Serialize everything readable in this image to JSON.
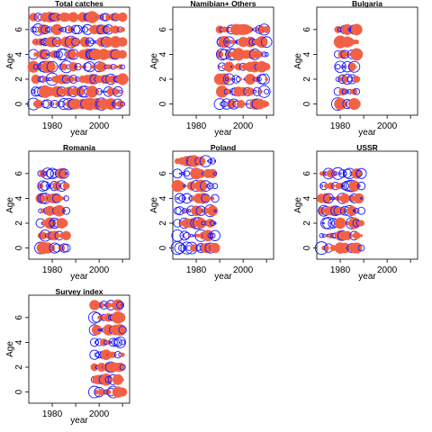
{
  "colors": {
    "positive": "#f26145",
    "negative": "#1a1aff",
    "axes": "#000000",
    "background": "#ffffff"
  },
  "chart_data": {
    "type": "scatter",
    "variant": "bubble residual plot (filled = positive, open circle = negative)",
    "xlabel": "year",
    "ylabel": "Age",
    "xlim": [
      1970,
      2013
    ],
    "ylim": [
      -0.9,
      7.8
    ],
    "xticks": [
      1980,
      2000
    ],
    "yticks": [
      0,
      2,
      4,
      6
    ],
    "panels": [
      {
        "title": "Total catches",
        "x_range": [
          1972,
          2010
        ],
        "ages": [
          0,
          7
        ],
        "seed": 11
      },
      {
        "title": "Namibian+ Others",
        "x_range": [
          1990,
          2010
        ],
        "ages": [
          0,
          6
        ],
        "seed": 23
      },
      {
        "title": "Bulgaria",
        "x_range": [
          1979,
          1987
        ],
        "ages": [
          0,
          6
        ],
        "seed": 37
      },
      {
        "title": "Romania",
        "x_range": [
          1975,
          1986
        ],
        "ages": [
          0,
          6
        ],
        "seed": 41
      },
      {
        "title": "Poland",
        "x_range": [
          1972,
          1988
        ],
        "ages": [
          0,
          7
        ],
        "seed": 53
      },
      {
        "title": "USSR",
        "x_range": [
          1972,
          1989
        ],
        "ages": [
          0,
          6
        ],
        "seed": 67
      },
      {
        "title": "Survey index",
        "x_range": [
          1998,
          2010
        ],
        "ages": [
          0,
          7
        ],
        "seed": 79
      }
    ]
  }
}
